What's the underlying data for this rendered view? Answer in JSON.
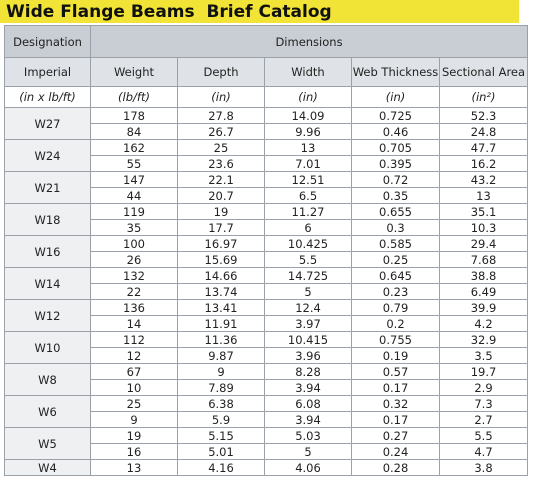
{
  "title": "Wide Flange Beams  Brief Catalog",
  "headers": {
    "designation": "Designation",
    "dimensions": "Dimensions",
    "columns": [
      "Imperial",
      "Weight",
      "Depth",
      "Width",
      "Web Thickness",
      "Sectional Area"
    ],
    "units": [
      "(in x lb/ft)",
      "(lb/ft)",
      "(in)",
      "(in)",
      "(in)",
      "(in²)"
    ]
  },
  "groups": [
    {
      "name": "W27",
      "rows": [
        [
          "178",
          "27.8",
          "14.09",
          "0.725",
          "52.3"
        ],
        [
          "84",
          "26.7",
          "9.96",
          "0.46",
          "24.8"
        ]
      ]
    },
    {
      "name": "W24",
      "rows": [
        [
          "162",
          "25",
          "13",
          "0.705",
          "47.7"
        ],
        [
          "55",
          "23.6",
          "7.01",
          "0.395",
          "16.2"
        ]
      ]
    },
    {
      "name": "W21",
      "rows": [
        [
          "147",
          "22.1",
          "12.51",
          "0.72",
          "43.2"
        ],
        [
          "44",
          "20.7",
          "6.5",
          "0.35",
          "13"
        ]
      ]
    },
    {
      "name": "W18",
      "rows": [
        [
          "119",
          "19",
          "11.27",
          "0.655",
          "35.1"
        ],
        [
          "35",
          "17.7",
          "6",
          "0.3",
          "10.3"
        ]
      ]
    },
    {
      "name": "W16",
      "rows": [
        [
          "100",
          "16.97",
          "10.425",
          "0.585",
          "29.4"
        ],
        [
          "26",
          "15.69",
          "5.5",
          "0.25",
          "7.68"
        ]
      ]
    },
    {
      "name": "W14",
      "rows": [
        [
          "132",
          "14.66",
          "14.725",
          "0.645",
          "38.8"
        ],
        [
          "22",
          "13.74",
          "5",
          "0.23",
          "6.49"
        ]
      ]
    },
    {
      "name": "W12",
      "rows": [
        [
          "136",
          "13.41",
          "12.4",
          "0.79",
          "39.9"
        ],
        [
          "14",
          "11.91",
          "3.97",
          "0.2",
          "4.2"
        ]
      ]
    },
    {
      "name": "W10",
      "rows": [
        [
          "112",
          "11.36",
          "10.415",
          "0.755",
          "32.9"
        ],
        [
          "12",
          "9.87",
          "3.96",
          "0.19",
          "3.5"
        ]
      ]
    },
    {
      "name": "W8",
      "rows": [
        [
          "67",
          "9",
          "8.28",
          "0.57",
          "19.7"
        ],
        [
          "10",
          "7.89",
          "3.94",
          "0.17",
          "2.9"
        ]
      ]
    },
    {
      "name": "W6",
      "rows": [
        [
          "25",
          "6.38",
          "6.08",
          "0.32",
          "7.3"
        ],
        [
          "9",
          "5.9",
          "3.94",
          "0.17",
          "2.7"
        ]
      ]
    },
    {
      "name": "W5",
      "rows": [
        [
          "19",
          "5.15",
          "5.03",
          "0.27",
          "5.5"
        ],
        [
          "16",
          "5.01",
          "5",
          "0.24",
          "4.7"
        ]
      ]
    },
    {
      "name": "W4",
      "rows": [
        [
          "13",
          "4.16",
          "4.06",
          "0.28",
          "3.8"
        ]
      ]
    }
  ],
  "colors": {
    "title_bar": "#f1e436",
    "header_dark": "#c9ced4",
    "header_light": "#dfe3e7",
    "border": "#9aa1a9"
  }
}
